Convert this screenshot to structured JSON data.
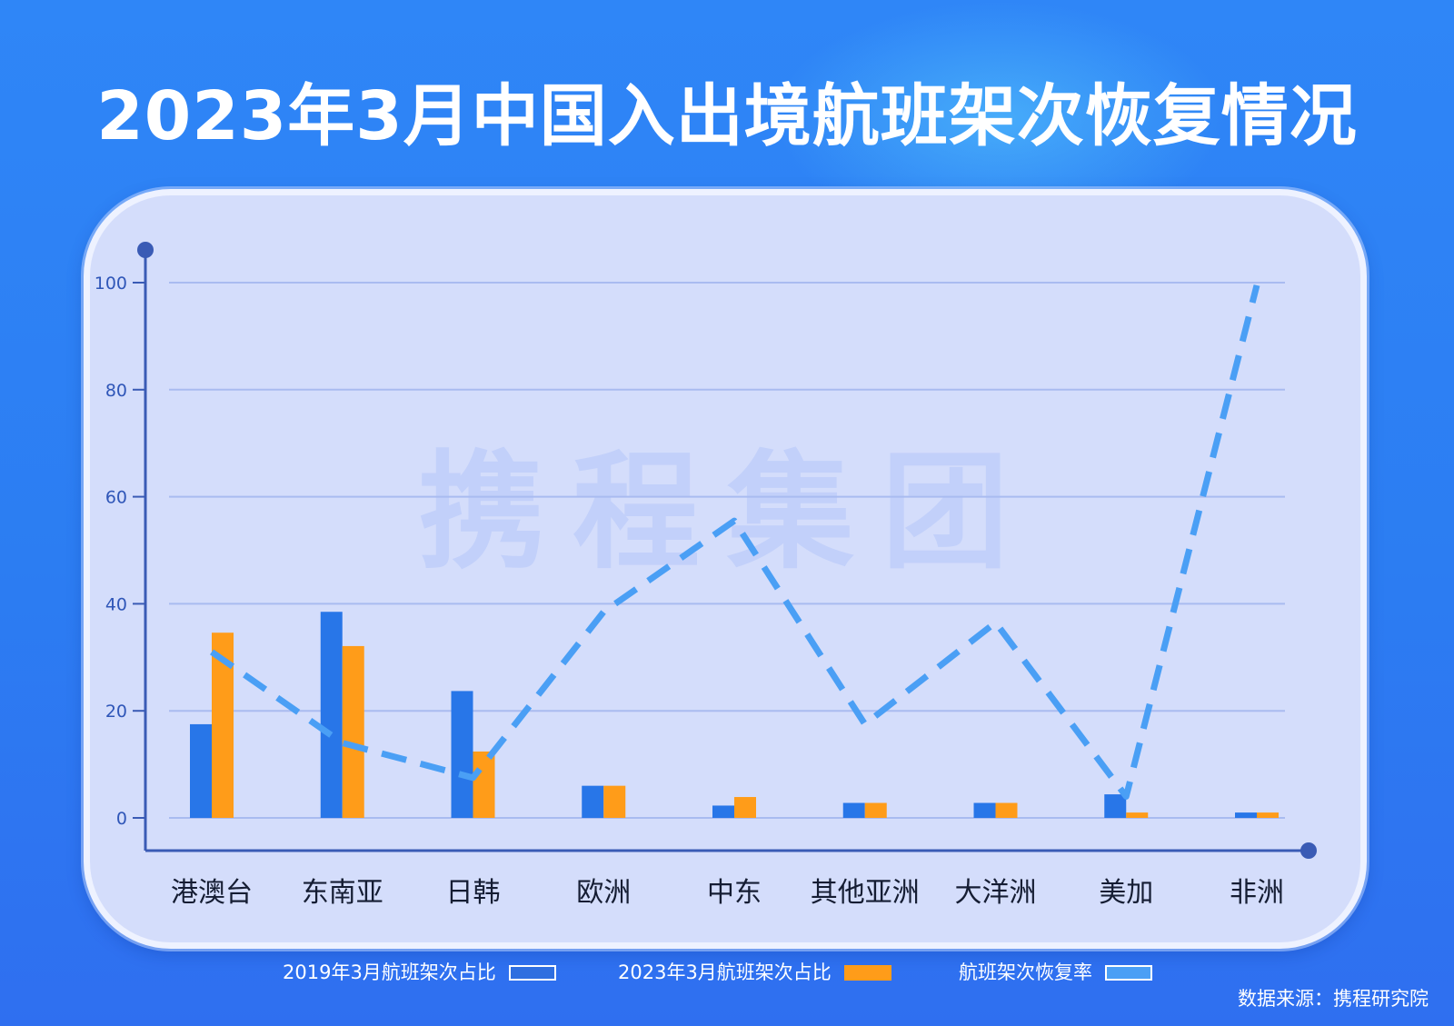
{
  "title": "2023年3月中国入出境航班架次恢复情况",
  "watermark": "携程集团",
  "source": "数据来源：携程研究院",
  "colors": {
    "bar2019": "#2876e8",
    "bar2023": "#ff9c19",
    "line": "#4a9ff5",
    "axis": "#3a5bb5",
    "grid": "#a9bbf0",
    "tick": "#2f56b8",
    "category": "#151d33",
    "watermark": "#c2d0fa"
  },
  "chart_data": {
    "type": "bar",
    "categories": [
      "港澳台",
      "东南亚",
      "日韩",
      "欧洲",
      "中东",
      "其他亚洲",
      "大洋洲",
      "美加",
      "非洲"
    ],
    "series": [
      {
        "name": "2019年3月航班架次占比",
        "type": "bar",
        "color": "#2876e8",
        "values": [
          17.5,
          38.5,
          23.7,
          6.0,
          2.3,
          2.8,
          2.8,
          4.4,
          1.0
        ]
      },
      {
        "name": "2023年3月航班架次占比",
        "type": "bar",
        "color": "#ff9c19",
        "values": [
          34.6,
          32.1,
          12.4,
          6.0,
          3.9,
          2.8,
          2.8,
          1.0,
          1.0
        ]
      },
      {
        "name": "航班架次恢复率",
        "type": "line",
        "color": "#4a9ff5",
        "values": [
          31,
          14,
          7.5,
          38.5,
          55.5,
          17.5,
          36.5,
          4,
          99.5
        ]
      }
    ],
    "y_ticks": [
      "0",
      "20",
      "40",
      "60",
      "80",
      "100"
    ],
    "ylim": [
      0,
      100
    ],
    "grid": true,
    "legend_position": "bottom"
  }
}
